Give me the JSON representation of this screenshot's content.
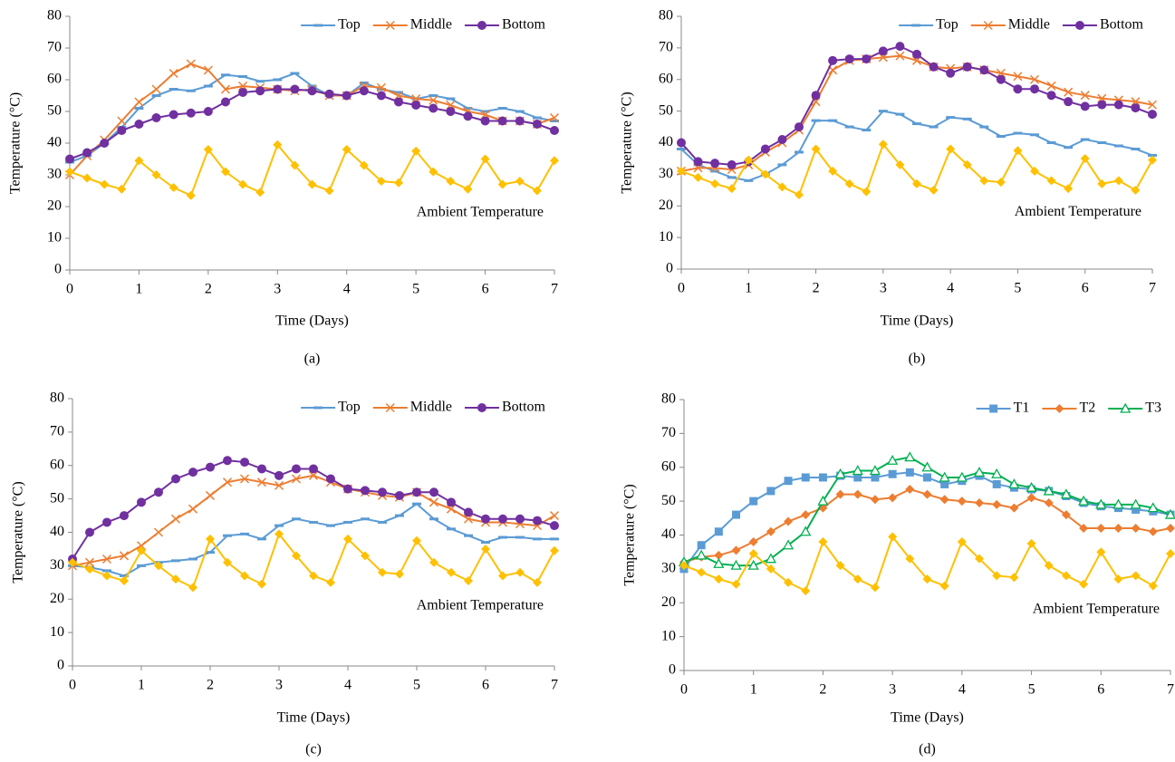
{
  "chart_data": [
    {
      "type": "line",
      "caption": "(a)",
      "xlabel": "Time (Days)",
      "ylabel": "Temperature (°C)",
      "annotation": "Ambient Temperature",
      "x": [
        0,
        0.25,
        0.5,
        0.75,
        1,
        1.25,
        1.5,
        1.75,
        2,
        2.25,
        2.5,
        2.75,
        3,
        3.25,
        3.5,
        3.75,
        4,
        4.25,
        4.5,
        4.75,
        5,
        5.25,
        5.5,
        5.75,
        6,
        6.25,
        6.5,
        6.75,
        7
      ],
      "xlim": [
        0,
        7
      ],
      "xticks": [
        0,
        1,
        2,
        3,
        4,
        5,
        6,
        7
      ],
      "ylim": [
        0,
        80
      ],
      "yticks": [
        0,
        10,
        20,
        30,
        40,
        50,
        60,
        70,
        80
      ],
      "series": [
        {
          "name": "Top",
          "color": "#5b9bd5",
          "marker": "dash",
          "values": [
            34,
            36,
            40,
            45,
            51,
            55,
            57,
            56.5,
            58,
            61.5,
            61,
            59.5,
            60,
            62,
            58,
            55,
            55,
            59,
            57,
            56,
            54,
            55,
            54,
            51,
            50,
            51,
            50,
            48,
            47
          ]
        },
        {
          "name": "Middle",
          "color": "#ed7d31",
          "marker": "x",
          "values": [
            30,
            36,
            41,
            47,
            53,
            57,
            62,
            65,
            63,
            57,
            58,
            57.5,
            57,
            56.5,
            57,
            55,
            55,
            58,
            57.5,
            55,
            54,
            53.5,
            52,
            50,
            49,
            47,
            47,
            46,
            48
          ]
        },
        {
          "name": "Bottom",
          "color": "#7030a0",
          "marker": "circle",
          "values": [
            35,
            37,
            40,
            44,
            46,
            48,
            49,
            49.5,
            50,
            53,
            56,
            56.5,
            57,
            57,
            56.5,
            55.5,
            55,
            56.5,
            55,
            53,
            52,
            51,
            50,
            48.5,
            47,
            47,
            47,
            46,
            44
          ]
        },
        {
          "color": "#ffc000",
          "marker": "diamond",
          "values": [
            31,
            29,
            27,
            25.5,
            34.5,
            30,
            26,
            23.5,
            38,
            31,
            27,
            24.5,
            39.5,
            33,
            27,
            25,
            38,
            33,
            28,
            27.5,
            37.5,
            31,
            28,
            25.5,
            35,
            27,
            28,
            25,
            34.5
          ]
        }
      ]
    },
    {
      "type": "line",
      "caption": "(b)",
      "xlabel": "Time (Days)",
      "ylabel": "Temperature (°C)",
      "annotation": "Ambient Temperature",
      "x": [
        0,
        0.25,
        0.5,
        0.75,
        1,
        1.25,
        1.5,
        1.75,
        2,
        2.25,
        2.5,
        2.75,
        3,
        3.25,
        3.5,
        3.75,
        4,
        4.25,
        4.5,
        4.75,
        5,
        5.25,
        5.5,
        5.75,
        6,
        6.25,
        6.5,
        6.75,
        7
      ],
      "xlim": [
        0,
        7
      ],
      "xticks": [
        0,
        1,
        2,
        3,
        4,
        5,
        6,
        7
      ],
      "ylim": [
        0,
        80
      ],
      "yticks": [
        0,
        10,
        20,
        30,
        40,
        50,
        60,
        70,
        80
      ],
      "series": [
        {
          "name": "Top",
          "color": "#5b9bd5",
          "marker": "dash",
          "values": [
            38,
            33,
            31,
            29,
            28,
            30,
            33,
            37,
            47,
            47,
            45,
            44,
            50,
            49,
            46,
            45,
            48,
            47.5,
            45,
            42,
            43,
            42.5,
            40,
            38.5,
            41,
            40,
            39,
            38,
            36
          ]
        },
        {
          "name": "Middle",
          "color": "#ed7d31",
          "marker": "x",
          "values": [
            31,
            32,
            32,
            31.5,
            33,
            37,
            40,
            44,
            53,
            63,
            66,
            66.5,
            67,
            67.5,
            66,
            64,
            63.5,
            64,
            63,
            62,
            61,
            60,
            58,
            56,
            55,
            54,
            53.5,
            53,
            52
          ]
        },
        {
          "name": "Bottom",
          "color": "#7030a0",
          "marker": "circle",
          "values": [
            40,
            34,
            33.5,
            33,
            34,
            38,
            41,
            45,
            55,
            66,
            66.5,
            66.5,
            69,
            70.5,
            68,
            64,
            62,
            64,
            63,
            60,
            57,
            57,
            55,
            53,
            51.5,
            52,
            52,
            51,
            49
          ]
        },
        {
          "color": "#ffc000",
          "marker": "diamond",
          "values": [
            31,
            29,
            27,
            25.5,
            34.5,
            30,
            26,
            23.5,
            38,
            31,
            27,
            24.5,
            39.5,
            33,
            27,
            25,
            38,
            33,
            28,
            27.5,
            37.5,
            31,
            28,
            25.5,
            35,
            27,
            28,
            25,
            34.5
          ]
        }
      ]
    },
    {
      "type": "line",
      "caption": "(c)",
      "xlabel": "Time (Days)",
      "ylabel": "Temperature (°C)",
      "annotation": "Ambient Temperature",
      "x": [
        0,
        0.25,
        0.5,
        0.75,
        1,
        1.25,
        1.5,
        1.75,
        2,
        2.25,
        2.5,
        2.75,
        3,
        3.25,
        3.5,
        3.75,
        4,
        4.25,
        4.5,
        4.75,
        5,
        5.25,
        5.5,
        5.75,
        6,
        6.25,
        6.5,
        6.75,
        7
      ],
      "xlim": [
        0,
        7
      ],
      "xticks": [
        0,
        1,
        2,
        3,
        4,
        5,
        6,
        7
      ],
      "ylim": [
        0,
        80
      ],
      "yticks": [
        0,
        10,
        20,
        30,
        40,
        50,
        60,
        70,
        80
      ],
      "series": [
        {
          "name": "Top",
          "color": "#5b9bd5",
          "marker": "dash",
          "values": [
            30,
            29.5,
            28.5,
            27,
            30,
            31,
            31.5,
            32,
            34,
            39,
            39.5,
            38,
            42,
            44,
            43,
            42,
            43,
            44,
            43,
            45,
            48.5,
            44,
            41,
            39,
            37,
            38.5,
            38.5,
            38,
            38
          ]
        },
        {
          "name": "Middle",
          "color": "#ed7d31",
          "marker": "x",
          "values": [
            30,
            31,
            32,
            33,
            36,
            40,
            44,
            47,
            51,
            55,
            56,
            55,
            54,
            56,
            57,
            55,
            53,
            52,
            51,
            50.5,
            52,
            49,
            47,
            44,
            43,
            43,
            42.5,
            42,
            45
          ]
        },
        {
          "name": "Bottom",
          "color": "#7030a0",
          "marker": "circle",
          "values": [
            32,
            40,
            43,
            45,
            49,
            52,
            56,
            58,
            59.5,
            61.5,
            61,
            59,
            57,
            59,
            59,
            56,
            53,
            52.5,
            52,
            51,
            52,
            52,
            49,
            46,
            44,
            44,
            44,
            43.5,
            42
          ]
        },
        {
          "color": "#ffc000",
          "marker": "diamond",
          "values": [
            31,
            29,
            27,
            25.5,
            34.5,
            30,
            26,
            23.5,
            38,
            31,
            27,
            24.5,
            39.5,
            33,
            27,
            25,
            38,
            33,
            28,
            27.5,
            37.5,
            31,
            28,
            25.5,
            35,
            27,
            28,
            25,
            34.5
          ]
        }
      ]
    },
    {
      "type": "line",
      "caption": "(d)",
      "xlabel": "Time (Days)",
      "ylabel": "Temperature (°C)",
      "annotation": "Ambient Temperature",
      "x": [
        0,
        0.25,
        0.5,
        0.75,
        1,
        1.25,
        1.5,
        1.75,
        2,
        2.25,
        2.5,
        2.75,
        3,
        3.25,
        3.5,
        3.75,
        4,
        4.25,
        4.5,
        4.75,
        5,
        5.25,
        5.5,
        5.75,
        6,
        6.25,
        6.5,
        6.75,
        7
      ],
      "xlim": [
        0,
        7
      ],
      "xticks": [
        0,
        1,
        2,
        3,
        4,
        5,
        6,
        7
      ],
      "ylim": [
        0,
        80
      ],
      "yticks": [
        0,
        10,
        20,
        30,
        40,
        50,
        60,
        70,
        80
      ],
      "series": [
        {
          "name": "T1",
          "color": "#5b9bd5",
          "marker": "square",
          "values": [
            30,
            37,
            41,
            46,
            50,
            53,
            56,
            57,
            57,
            57.5,
            57,
            57,
            58,
            58.5,
            57,
            55,
            56,
            57.5,
            55,
            54,
            53.5,
            53,
            51.5,
            49.5,
            48.5,
            48,
            47.5,
            47,
            46
          ]
        },
        {
          "name": "T2",
          "color": "#ed7d31",
          "marker": "diamond",
          "values": [
            32,
            33.5,
            34,
            35.5,
            38,
            41,
            44,
            46,
            48,
            52,
            52,
            50.5,
            51,
            53.5,
            52,
            50.5,
            50,
            49.5,
            49,
            48,
            51,
            49.5,
            46,
            42,
            42,
            42,
            42,
            41,
            42
          ]
        },
        {
          "name": "T3",
          "color": "#00b050",
          "marker": "triangle",
          "values": [
            32,
            34,
            31.5,
            31,
            31,
            33,
            37,
            41,
            50,
            58,
            59,
            59,
            62,
            63,
            60,
            57,
            57,
            58.5,
            58,
            55,
            54,
            53,
            52,
            50,
            49,
            49,
            49,
            48,
            46
          ]
        },
        {
          "color": "#ffc000",
          "marker": "diamond",
          "values": [
            31,
            29,
            27,
            25.5,
            34.5,
            30,
            26,
            23.5,
            38,
            31,
            27,
            24.5,
            39.5,
            33,
            27,
            25,
            38,
            33,
            28,
            27.5,
            37.5,
            31,
            28,
            25.5,
            35,
            27,
            28,
            25,
            34.5
          ]
        }
      ]
    }
  ]
}
